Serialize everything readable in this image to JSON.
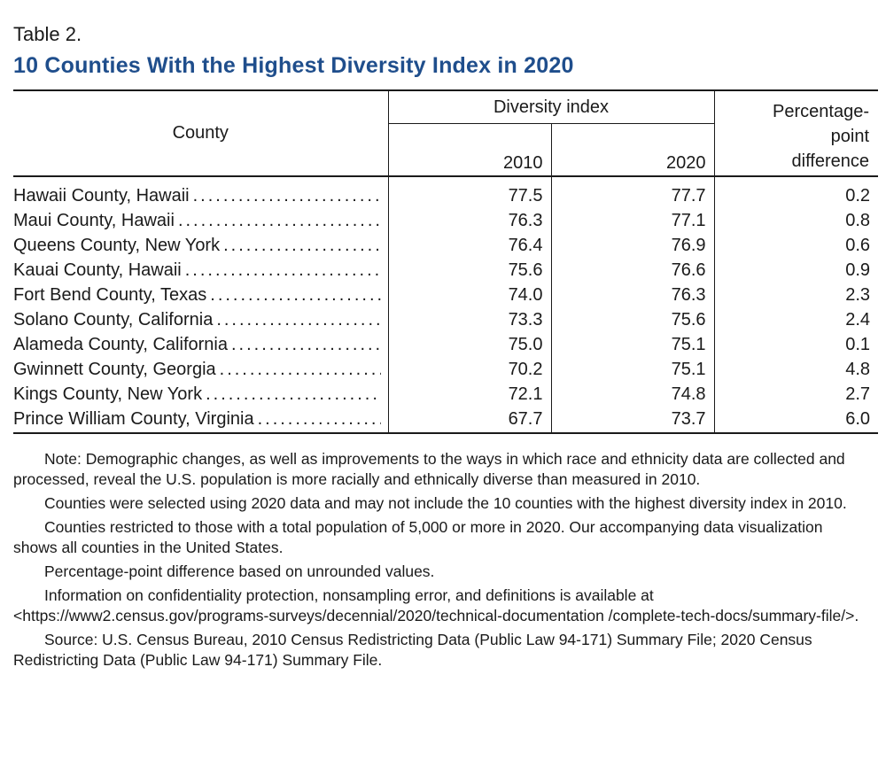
{
  "table_label": "Table 2.",
  "table_title": "10 Counties With the Highest Diversity Index in 2020",
  "accent_color": "#1f4e8c",
  "headers": {
    "county": "County",
    "diversity_index": "Diversity index",
    "year_2010": "2010",
    "year_2020": "2020",
    "pct_line1": "Percentage-",
    "pct_line2": "point",
    "pct_line3": "difference"
  },
  "rows": [
    {
      "county": "Hawaii County, Hawaii",
      "v2010": "77.5",
      "v2020": "77.7",
      "diff": "0.2"
    },
    {
      "county": "Maui County, Hawaii",
      "v2010": "76.3",
      "v2020": "77.1",
      "diff": "0.8"
    },
    {
      "county": "Queens County, New York",
      "v2010": "76.4",
      "v2020": "76.9",
      "diff": "0.6"
    },
    {
      "county": "Kauai County, Hawaii",
      "v2010": "75.6",
      "v2020": "76.6",
      "diff": "0.9"
    },
    {
      "county": "Fort Bend County, Texas",
      "v2010": "74.0",
      "v2020": "76.3",
      "diff": "2.3"
    },
    {
      "county": "Solano County, California",
      "v2010": "73.3",
      "v2020": "75.6",
      "diff": "2.4"
    },
    {
      "county": "Alameda County, California",
      "v2010": "75.0",
      "v2020": "75.1",
      "diff": "0.1"
    },
    {
      "county": "Gwinnett County, Georgia",
      "v2010": "70.2",
      "v2020": "75.1",
      "diff": "4.8"
    },
    {
      "county": "Kings County, New York",
      "v2010": "72.1",
      "v2020": "74.8",
      "diff": "2.7"
    },
    {
      "county": "Prince William County, Virginia",
      "v2010": "67.7",
      "v2020": "73.7",
      "diff": "6.0"
    }
  ],
  "notes": [
    "Note: Demographic changes, as well as improvements to the ways in which race and ethnicity data are collected and processed, reveal the U.S. population is more racially and ethnically diverse than measured in 2010.",
    "Counties were selected using 2020 data and may not include the 10 counties with the highest diversity index in 2010.",
    "Counties restricted to those with a total population of 5,000 or more in 2020. Our accompanying data visualization shows all counties in the United States.",
    "Percentage-point difference based on unrounded values.",
    "Information on confidentiality protection, nonsampling error, and definitions is available at <https://www2.census.gov/programs-surveys/decennial/2020/technical-documentation /complete-tech-docs/summary-file/>.",
    "Source: U.S. Census Bureau, 2010 Census Redistricting Data (Public Law 94-171) Summary File; 2020 Census Redistricting Data (Public Law 94-171) Summary File."
  ]
}
